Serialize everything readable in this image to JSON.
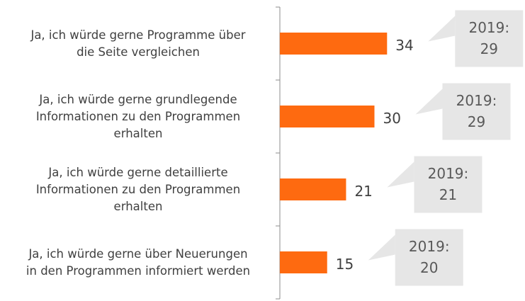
{
  "chart_data": {
    "type": "barh",
    "categories": [
      "Ja, ich würde gerne Programme über\ndie Seite vergleichen",
      "Ja, ich würde gerne grundlegende\nInformationen zu den Programmen\nerhalten",
      "Ja, ich würde gerne detaillierte\nInformationen zu den Programmen\nerhalten",
      "Ja, ich würde gerne über Neuerungen\nin den Programmen informiert werden"
    ],
    "values": [
      34,
      30,
      21,
      15
    ],
    "color": "#fe6a10",
    "comparison_label": "2019:",
    "comparison_values": [
      29,
      29,
      21,
      20
    ],
    "comparison_color": "#e6e6e6"
  }
}
